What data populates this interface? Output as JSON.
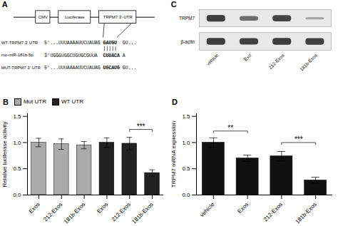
{
  "chart_data": [
    {
      "type": "diagram",
      "title": "A",
      "construct": [
        "CMV",
        "Luciferase",
        "TRPM7 3'-UTR"
      ],
      "alignment": [
        {
          "name": "WT-TRPM7 3' UTR",
          "end": "5'",
          "segments": [
            "...UUUAAAAUUCUAUAG",
            "GAUGU",
            "GU..."
          ]
        },
        {
          "name": "mo-miR-181b-5p",
          "end": "3'",
          "segments": [
            "UGGGUGGCUGUGCGUUA",
            "CUUACA",
            "A"
          ]
        },
        {
          "name": "MUT-TRPM7 3' UTR",
          "end": "5'",
          "segments": [
            "...UUUAAAAUUCUAUAG",
            "UGCAUG",
            "GU..."
          ]
        }
      ]
    },
    {
      "type": "blot",
      "title": "C",
      "categories": [
        "vehicle",
        "Exo",
        "212-Exos",
        "181b-Exos"
      ],
      "series": [
        {
          "name": "TRPM7",
          "values": [
            0.85,
            0.55,
            0.8,
            0.18
          ]
        },
        {
          "name": "β-actin",
          "values": [
            0.85,
            0.82,
            0.85,
            0.83
          ]
        }
      ]
    },
    {
      "type": "bar",
      "title": "B",
      "categories": [
        "Exos",
        "212-Exos",
        "181b-Exos",
        "Exos",
        "212-Exos",
        "181b-Exos"
      ],
      "series": [
        {
          "name": "Mut UTR",
          "color": "#aaaaaa",
          "values": [
            1.0,
            0.97,
            0.95,
            null,
            null,
            null
          ],
          "errors": [
            0.08,
            0.1,
            0.07,
            null,
            null,
            null
          ]
        },
        {
          "name": "WT UTR",
          "color": "#222222",
          "values": [
            null,
            null,
            null,
            1.0,
            0.98,
            0.42
          ],
          "errors": [
            null,
            null,
            null,
            0.09,
            0.12,
            0.06
          ]
        }
      ],
      "ylabel": "Relative luciferase activity",
      "ylim": [
        0,
        1.55
      ],
      "yticks": [
        {
          "value": 0,
          "label": "0.0"
        },
        0.5,
        {
          "value": 1,
          "label": "1.0"
        },
        1.5
      ],
      "legend": "upper left",
      "annotations": [
        {
          "text": "***",
          "from": 4,
          "to": 5,
          "y": 1.25
        }
      ]
    },
    {
      "type": "bar",
      "title": "D",
      "categories": [
        "vehicle",
        "Exos",
        "212-Exos",
        "181b-Exos"
      ],
      "values": [
        1.0,
        0.7,
        0.74,
        0.28
      ],
      "errors": [
        0.09,
        0.06,
        0.09,
        0.06
      ],
      "colors": [
        "#111111",
        "#111111",
        "#111111",
        "#111111"
      ],
      "ylabel": "TRPM7 mRNA expression",
      "ylim": [
        0,
        1.55
      ],
      "yticks": [
        {
          "value": 0,
          "label": "0.0"
        },
        0.5,
        {
          "value": 1,
          "label": "1.0"
        },
        1.5
      ],
      "annotations": [
        {
          "text": "**",
          "from": 0,
          "to": 1,
          "y": 1.22
        },
        {
          "text": "***",
          "from": 2,
          "to": 3,
          "y": 1.0
        }
      ]
    }
  ]
}
